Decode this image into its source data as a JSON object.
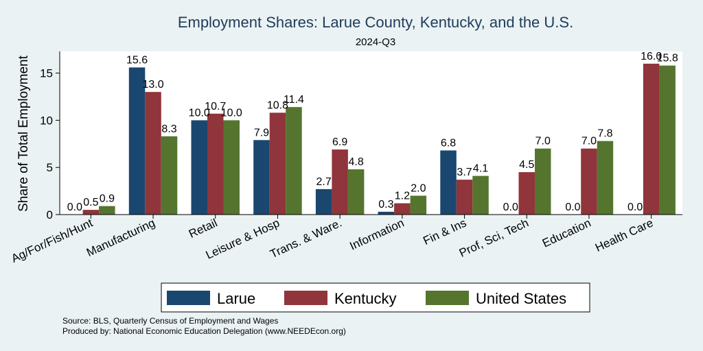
{
  "colors": {
    "background": "#eaf2f3",
    "plot_background": "#ffffff",
    "title": "#1f3b5c",
    "series": [
      "#1a476f",
      "#90353b",
      "#55752f"
    ]
  },
  "chart_data": {
    "type": "bar",
    "title": "Employment Shares: Larue County, Kentucky, and the U.S.",
    "subtitle": "2024-Q3",
    "xlabel": "",
    "ylabel": "Share of Total Employment",
    "ylim": [
      0,
      17.3
    ],
    "yticks": [
      0,
      5,
      10,
      15
    ],
    "grid": false,
    "legend_position": "bottom",
    "categories": [
      "Ag/For/Fish/Hunt",
      "Manufacturing",
      "Retail",
      "Leisure & Hosp",
      "Trans. & Ware.",
      "Information",
      "Fin & Ins",
      "Prof, Sci, Tech",
      "Education",
      "Health Care"
    ],
    "series": [
      {
        "name": "Larue",
        "values": [
          0.0,
          15.6,
          10.0,
          7.9,
          2.7,
          0.3,
          6.8,
          0.0,
          0.0,
          0.0
        ]
      },
      {
        "name": "Kentucky",
        "values": [
          0.5,
          13.0,
          10.7,
          10.8,
          6.9,
          1.2,
          3.7,
          4.5,
          7.0,
          16.0
        ]
      },
      {
        "name": "United States",
        "values": [
          0.9,
          8.3,
          10.0,
          11.4,
          4.8,
          2.0,
          4.1,
          7.0,
          7.8,
          15.8
        ]
      }
    ],
    "value_labels": [
      [
        "0.0",
        "15.6",
        "10.0",
        "7.9",
        "2.7",
        "0.3",
        "6.8",
        "0.0",
        "0.0",
        "0.0"
      ],
      [
        "0.5",
        "13.0",
        "10.7",
        "10.8",
        "6.9",
        "1.2",
        "3.7",
        "4.5",
        "7.0",
        "16.0"
      ],
      [
        "0.9",
        "8.3",
        "10.0",
        "11.4",
        "4.8",
        "2.0",
        "4.1",
        "7.0",
        "7.8",
        "15.8"
      ]
    ]
  },
  "notes": {
    "source": "Source: BLS, Quarterly Census of Employment and Wages",
    "produced_by": "Produced by: National Economic Education Delegation (www.NEEDEcon.org)"
  }
}
